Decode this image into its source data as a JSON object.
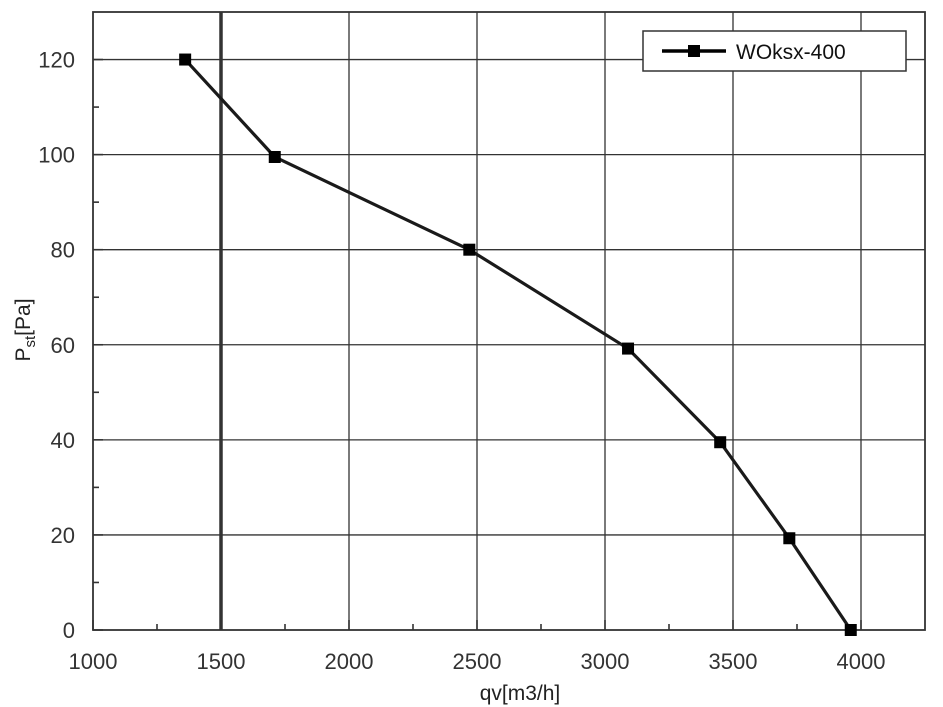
{
  "chart_data": {
    "type": "line",
    "title": "",
    "xlabel": "qv[m3/h]",
    "ylabel": {
      "main": "P",
      "sub": "st",
      "rest": "[Pa]"
    },
    "xlim": [
      1000,
      4250
    ],
    "ylim": [
      0,
      130
    ],
    "xticks": [
      1000,
      1500,
      2000,
      2500,
      3000,
      3500,
      4000
    ],
    "yticks": [
      0,
      20,
      40,
      60,
      80,
      100,
      120
    ],
    "grid": true,
    "legend_position": "top-right",
    "colors": {
      "line": "#1a1a1a",
      "grid": "#333333",
      "marker": "#000000"
    },
    "series": [
      {
        "name": "WOksx-400",
        "x": [
          1360,
          1710,
          2470,
          3090,
          3450,
          3720,
          3960
        ],
        "y": [
          120,
          99.5,
          80,
          59.2,
          39.5,
          19.3,
          0
        ]
      }
    ]
  }
}
